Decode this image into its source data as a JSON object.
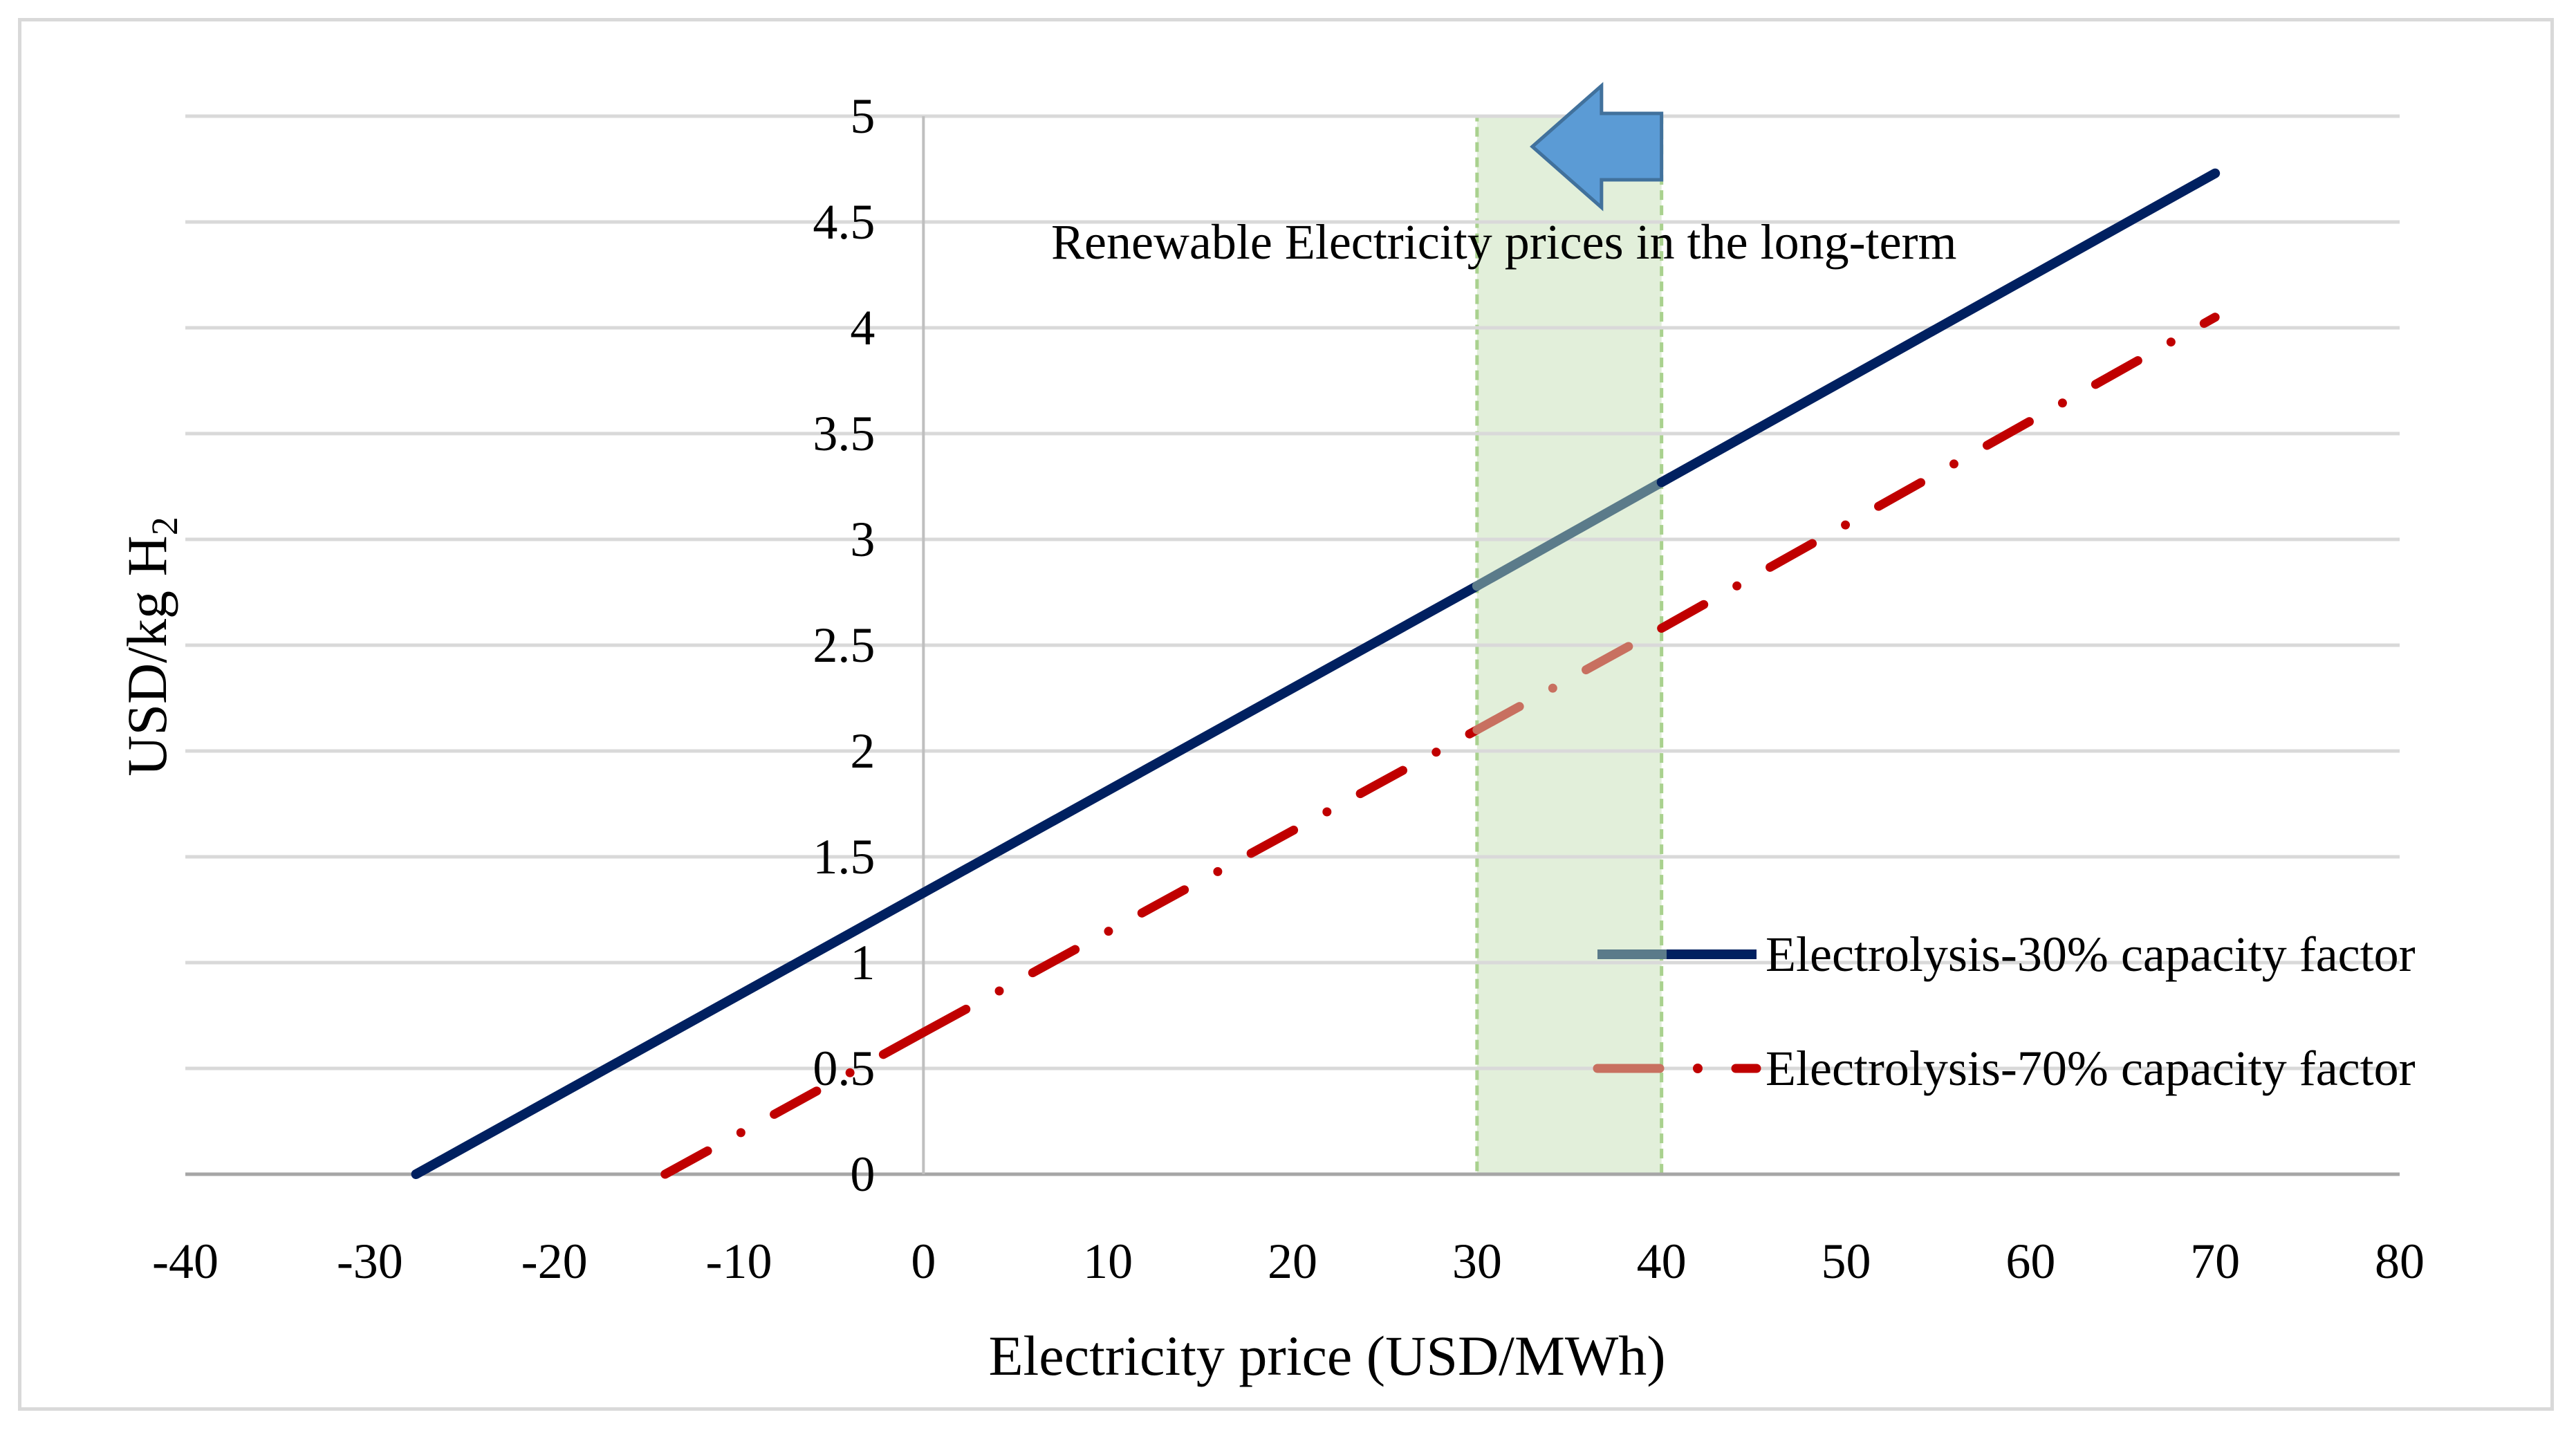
{
  "chart_data": {
    "type": "line",
    "xlabel": "Electricity price (USD/MWh)",
    "ylabel": "USD/kg H",
    "ylabel_subscript": "2",
    "xlim": [
      -40,
      80
    ],
    "ylim": [
      0,
      5
    ],
    "x_ticks": [
      "-40",
      "-30",
      "-20",
      "-10",
      "0",
      "10",
      "20",
      "30",
      "40",
      "50",
      "60",
      "70",
      "80"
    ],
    "y_ticks": [
      "0",
      "0.5",
      "1",
      "1.5",
      "2",
      "2.5",
      "3",
      "3.5",
      "4",
      "4.5",
      "5"
    ],
    "grid": "horizontal",
    "series": [
      {
        "name": "Electrolysis-30% capacity factor",
        "x": [
          -27.5,
          0,
          30,
          40,
          70
        ],
        "y": [
          0,
          1.33,
          2.78,
          3.27,
          4.73
        ],
        "color": "#002060",
        "highlight_color": "#5b7b8a",
        "style": "solid"
      },
      {
        "name": "Electrolysis-70% capacity factor",
        "x": [
          -14,
          0,
          30,
          40,
          70
        ],
        "y": [
          0,
          0.67,
          2.1,
          2.58,
          4.05
        ],
        "color": "#c00000",
        "highlight_color": "#c87060",
        "style": "dash-dot"
      }
    ],
    "highlight_band": {
      "x_range": [
        30,
        40
      ],
      "label": "Renewable Electricity prices in the long-term",
      "fill": "#e2efda",
      "border": "#a9d18e"
    },
    "arrow": {
      "direction": "left",
      "color": "#5b9bd5",
      "border": "#41719c"
    },
    "legend_position": "right"
  }
}
